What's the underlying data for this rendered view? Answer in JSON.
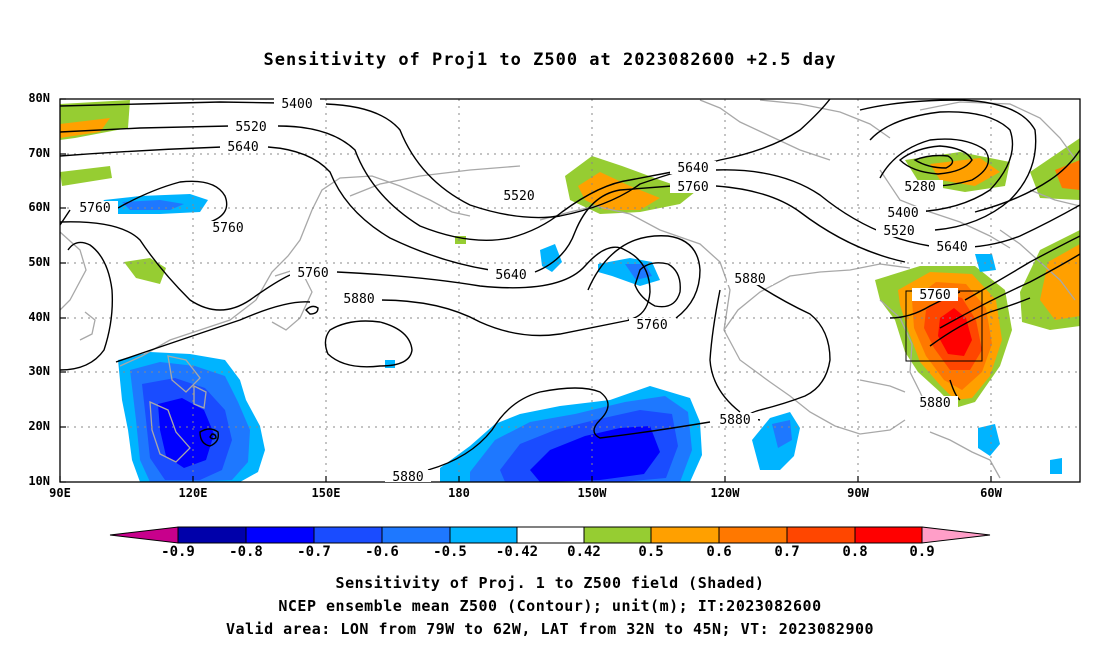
{
  "title": "Sensitivity of Proj1 to Z500 at 2023082600 +2.5 day",
  "lat_labels": [
    "80N",
    "70N",
    "60N",
    "50N",
    "40N",
    "30N",
    "20N",
    "10N"
  ],
  "lon_labels": [
    "90E",
    "120E",
    "150E",
    "180",
    "150W",
    "120W",
    "90W",
    "60W"
  ],
  "contour_labels": [
    "5400",
    "5520",
    "5640",
    "5760",
    "5760",
    "5520",
    "5640",
    "5760",
    "5640",
    "5760",
    "5880",
    "5760",
    "5880",
    "5880",
    "5880",
    "5280",
    "5400",
    "5520",
    "5640",
    "5760",
    "5880"
  ],
  "colorbar": {
    "labels": [
      "-0.9",
      "-0.8",
      "-0.7",
      "-0.6",
      "-0.5",
      "-0.42",
      "0.42",
      "0.5",
      "0.6",
      "0.7",
      "0.8",
      "0.9"
    ],
    "colors": [
      "#c8008c",
      "#0000aa",
      "#0000ff",
      "#1a4cff",
      "#1e78ff",
      "#00b4ff",
      "#ffffff",
      "#96cd32",
      "#ffa000",
      "#ff7800",
      "#ff4600",
      "#ff0000",
      "#ff9ec8"
    ]
  },
  "captions": {
    "line1": "Sensitivity of Proj. 1 to Z500 field (Shaded)",
    "line2": "NCEP ensemble mean Z500 (Contour); unit(m); IT:2023082600",
    "line3": "Valid area: LON from 79W to 62W, LAT from 32N to 45N; VT: 2023082900"
  }
}
